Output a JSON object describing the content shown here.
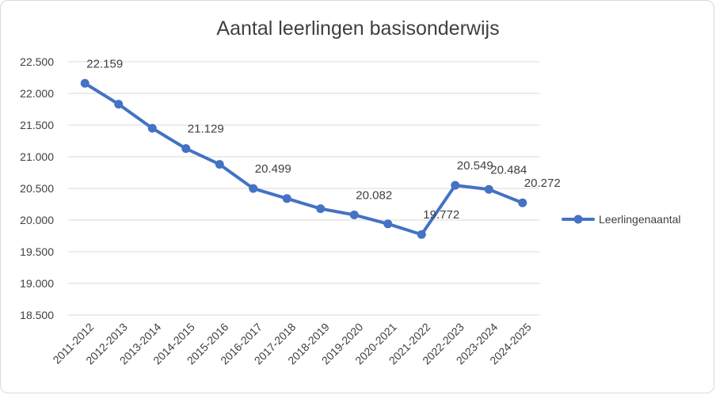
{
  "chart_data": {
    "type": "line",
    "title": "Aantal leerlingen basisonderwijs",
    "xlabel": "",
    "ylabel": "",
    "ylim": [
      18500,
      22500
    ],
    "ytick_step": 500,
    "y_tick_labels": [
      "18.500",
      "19.000",
      "19.500",
      "20.000",
      "20.500",
      "21.000",
      "21.500",
      "22.000",
      "22.500"
    ],
    "categories": [
      "2011-2012",
      "2012-2013",
      "2013-2014",
      "2014-2015",
      "2015-2016",
      "2016-2017",
      "2017-2018",
      "2018-2019",
      "2019-2020",
      "2020-2021",
      "2021-2022",
      "2022-2023",
      "2023-2024",
      "2024-2025"
    ],
    "series": [
      {
        "name": "Leerlingenaantal",
        "color": "#4472c4",
        "values": [
          22159,
          21830,
          21450,
          21129,
          20880,
          20499,
          20340,
          20180,
          20082,
          19940,
          19772,
          20549,
          20484,
          20272
        ]
      }
    ],
    "data_labels": [
      {
        "index": 0,
        "text": "22.159"
      },
      {
        "index": 3,
        "text": "21.129"
      },
      {
        "index": 5,
        "text": "20.499"
      },
      {
        "index": 8,
        "text": "20.082"
      },
      {
        "index": 10,
        "text": "19.772"
      },
      {
        "index": 11,
        "text": "20.549"
      },
      {
        "index": 12,
        "text": "20.484"
      },
      {
        "index": 13,
        "text": "20.272"
      }
    ],
    "grid": true,
    "legend": "right"
  }
}
